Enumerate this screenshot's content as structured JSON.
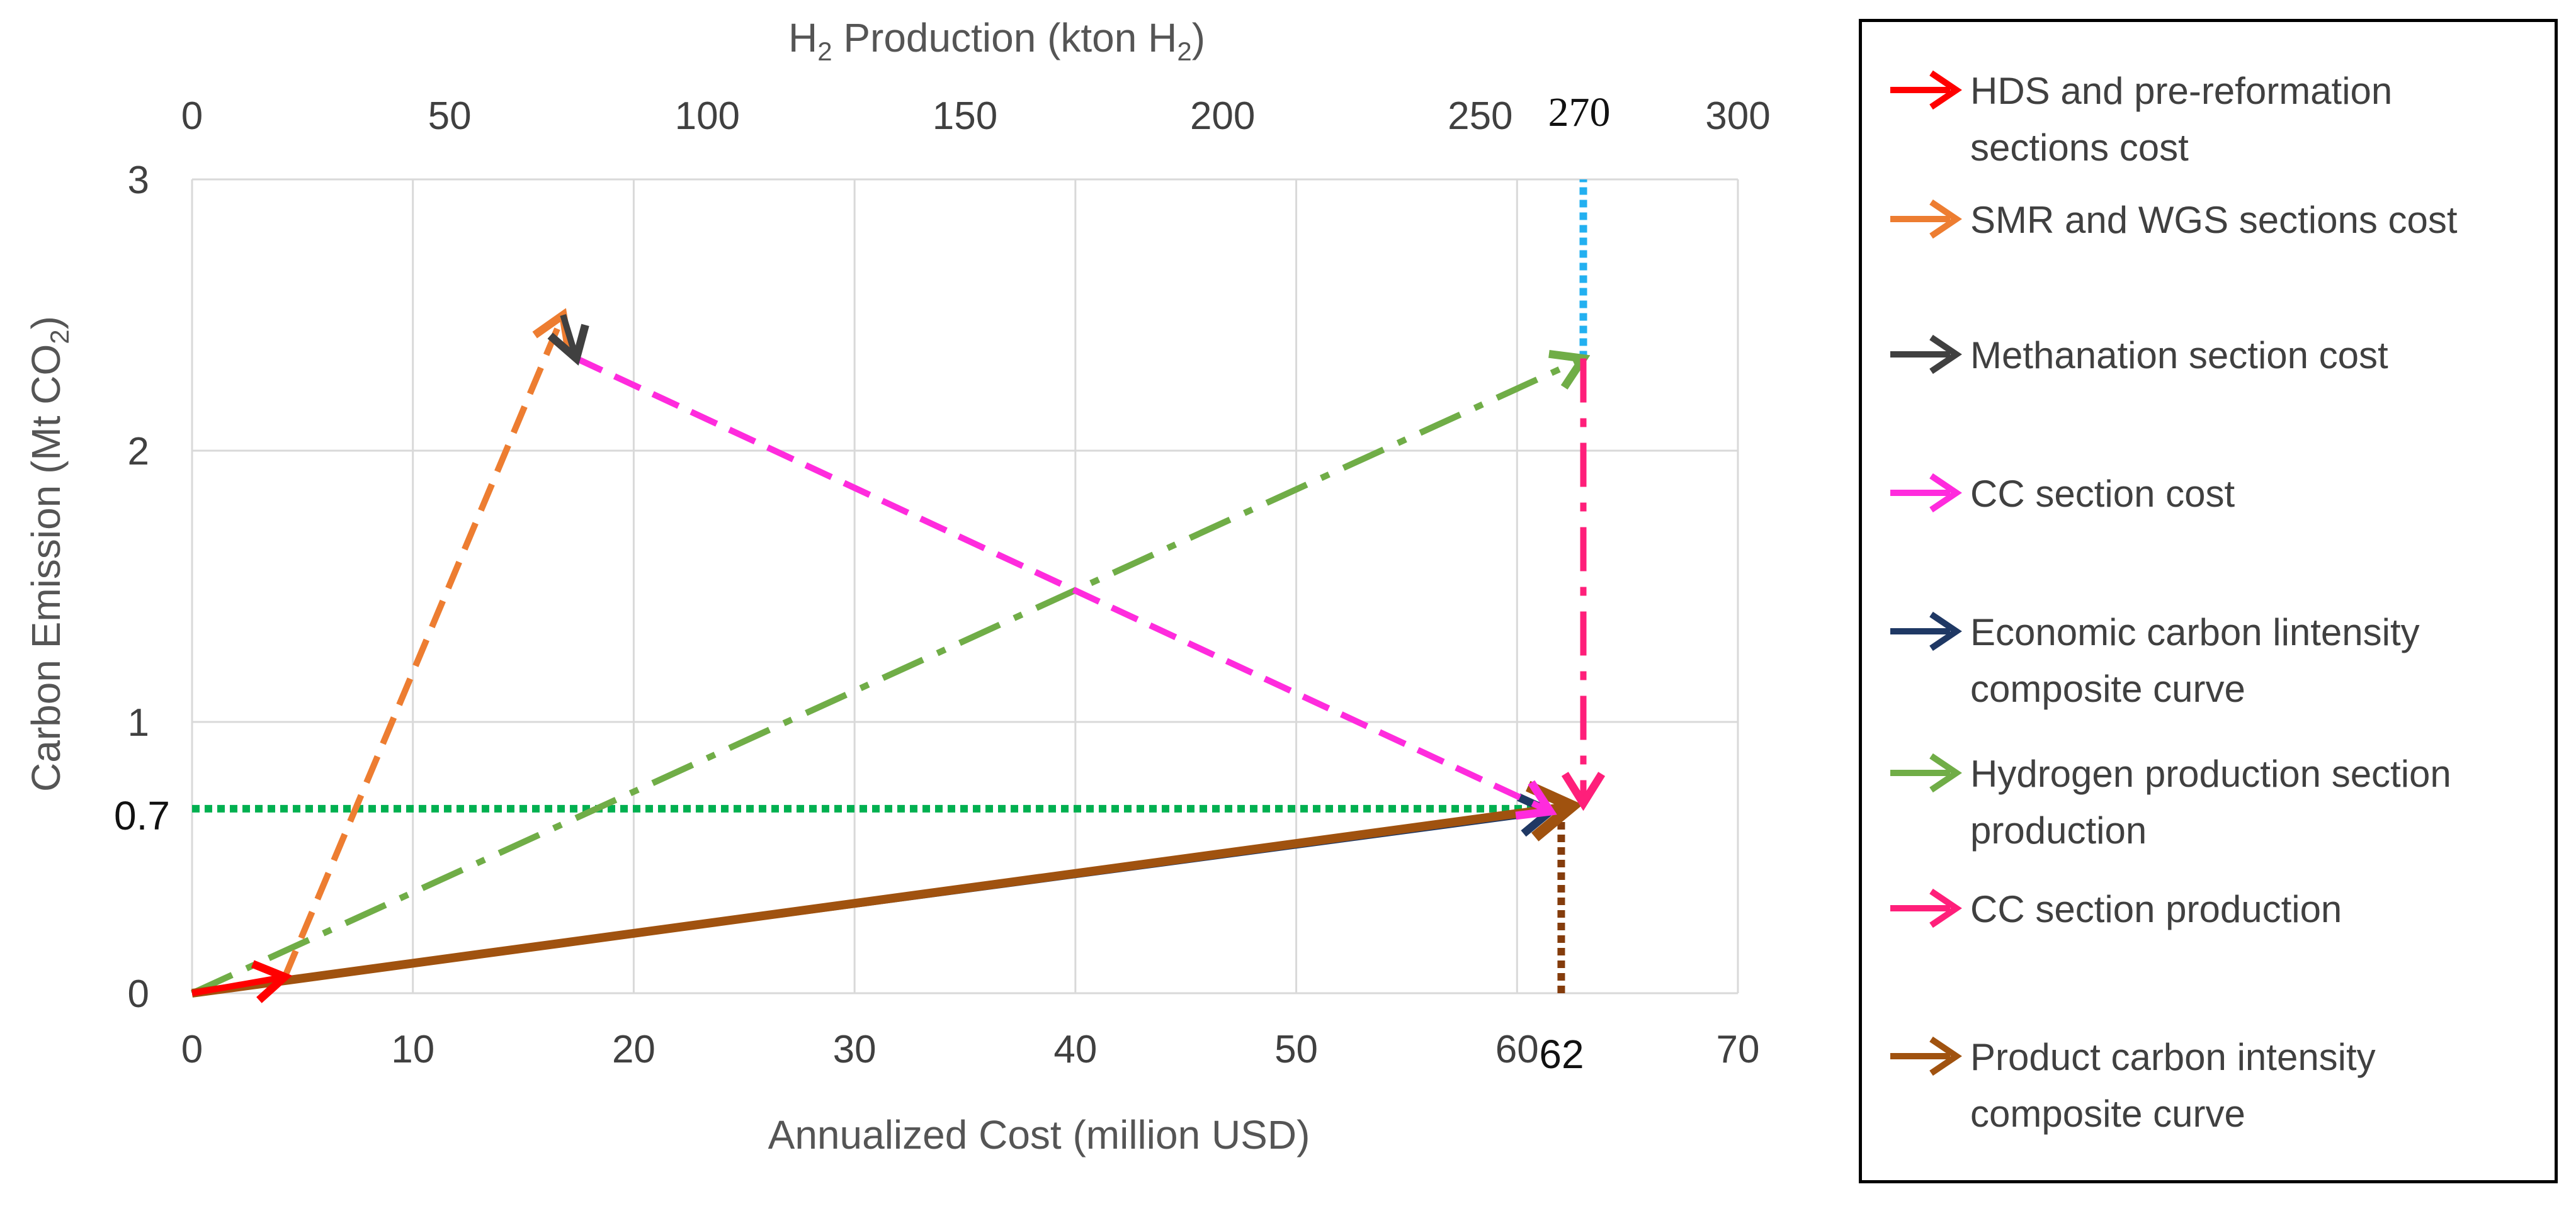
{
  "chart_data": {
    "type": "line",
    "xlabel": "Annualized Cost (million USD)",
    "ylabel_prefix": "Carbon Emission (Mt CO",
    "ylabel_sub": "2",
    "ylabel_suffix": ")",
    "x2label_prefix": "H",
    "x2label_sub1": "2",
    "x2label_mid": " Production (kton H",
    "x2label_sub2": "2",
    "x2label_suffix": ")",
    "xlim": [
      0,
      70
    ],
    "ylim": [
      0,
      3
    ],
    "x2lim": [
      0,
      300
    ],
    "x_ticks": [
      0,
      10,
      20,
      30,
      40,
      50,
      60,
      70
    ],
    "y_ticks": [
      0,
      1,
      2,
      3
    ],
    "x2_ticks": [
      0,
      50,
      100,
      150,
      200,
      250,
      300
    ],
    "grid": true,
    "annotations": {
      "y_value": "0.7",
      "x_value": "62",
      "x2_value": "270"
    },
    "series": [
      {
        "name": "HDS and pre-reformation sections cost",
        "color": "#ff0000",
        "dash": "solid",
        "points": [
          [
            0,
            0
          ],
          [
            4.2,
            0.06
          ]
        ]
      },
      {
        "name": "SMR and WGS sections cost",
        "color": "#ed7d31",
        "dash": "dashed",
        "points": [
          [
            4.2,
            0.06
          ],
          [
            16.8,
            2.5
          ]
        ]
      },
      {
        "name": "Methanation section cost",
        "color": "#404040",
        "dash": "solid",
        "points": [
          [
            16.8,
            2.5
          ],
          [
            17.4,
            2.34
          ]
        ]
      },
      {
        "name": "CC section cost",
        "color": "#ff2bdd",
        "dash": "dashed",
        "points": [
          [
            17.4,
            2.34
          ],
          [
            61.5,
            0.67
          ]
        ]
      },
      {
        "name": "Economic carbon lintensity composite curve",
        "color": "#1f3864",
        "dash": "solid",
        "points": [
          [
            0,
            0
          ],
          [
            61.5,
            0.67
          ]
        ]
      },
      {
        "name": "Hydrogen production section production",
        "color": "#70ad47",
        "dash": "dashdot",
        "points": [
          [
            0,
            0
          ],
          [
            63,
            2.34
          ]
        ]
      },
      {
        "name": "CC section production",
        "color": "#ff1f7a",
        "dash": "dashdot",
        "points": [
          [
            63,
            2.34
          ],
          [
            63,
            0.7
          ]
        ]
      },
      {
        "name": "Product carbon intensity composite curve",
        "color": "#a0520f",
        "dash": "solid",
        "points": [
          [
            0,
            0
          ],
          [
            62.5,
            0.69
          ]
        ]
      }
    ],
    "guide_lines": [
      {
        "name": "y-0.7-guide",
        "color": "#00b050",
        "points": [
          [
            0,
            0.68
          ],
          [
            62.5,
            0.68
          ]
        ]
      },
      {
        "name": "x-62-guide",
        "color": "#843c0c",
        "points": [
          [
            62,
            0
          ],
          [
            62,
            0.68
          ]
        ]
      },
      {
        "name": "x2-270-guide",
        "color": "#23b0f0",
        "points": [
          [
            63,
            2.34
          ],
          [
            63,
            3
          ]
        ]
      }
    ]
  }
}
